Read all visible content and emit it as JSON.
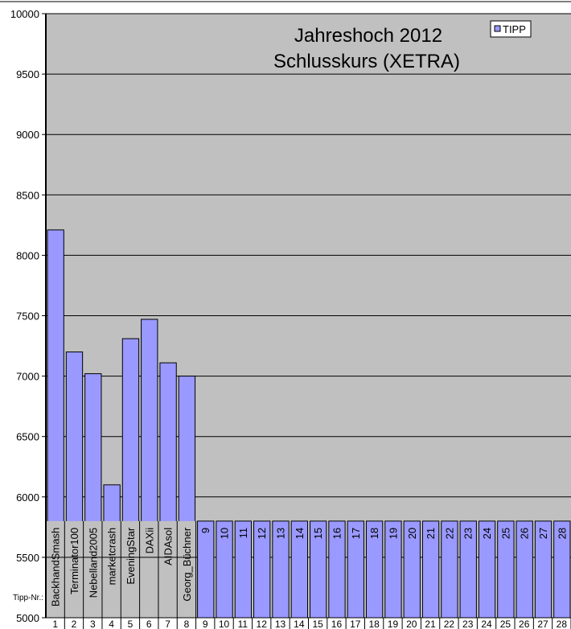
{
  "chart_data": {
    "type": "bar",
    "title": [
      "Jahreshoch 2012",
      "Schlusskurs (XETRA)"
    ],
    "xlabel": "",
    "ylabel": "",
    "ylim": [
      5000,
      10000
    ],
    "yticks": [
      5000,
      5500,
      6000,
      6500,
      7000,
      7500,
      8000,
      8500,
      9000,
      9500,
      10000
    ],
    "grid": true,
    "legend": {
      "position": "top-right",
      "entries": [
        "TIPP"
      ]
    },
    "categories": [
      "1",
      "2",
      "3",
      "4",
      "5",
      "6",
      "7",
      "8",
      "9",
      "10",
      "11",
      "12",
      "13",
      "14",
      "15",
      "16",
      "17",
      "18",
      "19",
      "20",
      "21",
      "22",
      "23",
      "24",
      "25",
      "26",
      "27",
      "28"
    ],
    "series": [
      {
        "name": "TIPP",
        "values": [
          8210,
          7200,
          7020,
          6100,
          7310,
          7470,
          7110,
          7000,
          5800,
          5800,
          5800,
          5800,
          5800,
          5800,
          5800,
          5800,
          5800,
          5800,
          5800,
          5800,
          5800,
          5800,
          5800,
          5800,
          5800,
          5800,
          5800,
          5800
        ]
      }
    ],
    "bar_labels": [
      "BackhandSmash",
      "Terminator100",
      "Nebelland2005",
      "marketcrash",
      "EveningStar",
      "DAXii",
      "AIDAsol",
      "Georg_Büchner",
      "9",
      "10",
      "11",
      "12",
      "13",
      "14",
      "15",
      "16",
      "17",
      "18",
      "19",
      "20",
      "21",
      "22",
      "23",
      "24",
      "25",
      "26",
      "27",
      "28"
    ],
    "row_label": "Tipp-Nr.:",
    "colors": {
      "bar": "#9999ff",
      "plot_bg": "#c0c0c0",
      "grid": "#000000"
    }
  }
}
